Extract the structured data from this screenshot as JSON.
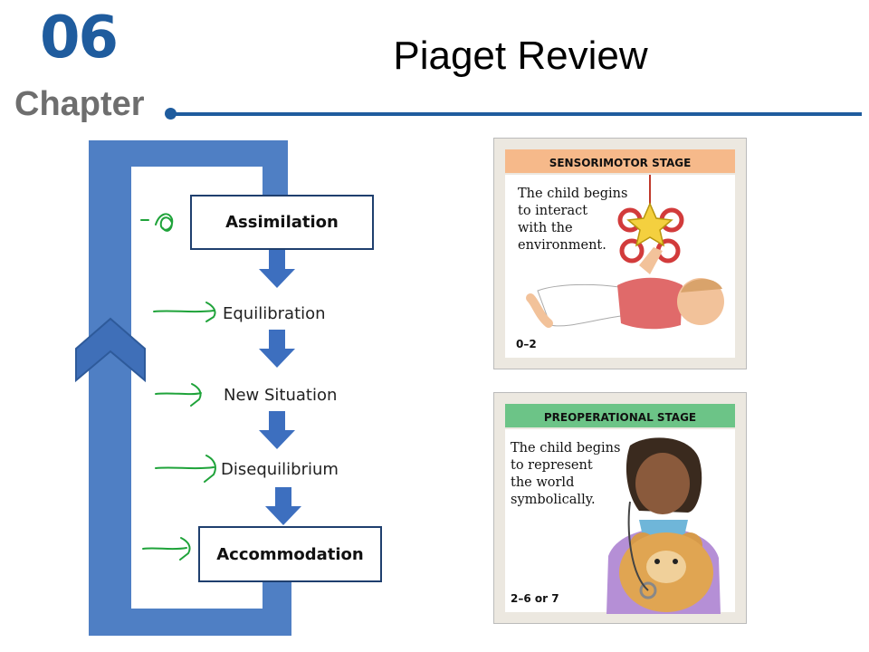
{
  "header": {
    "chapter_number": "06",
    "chapter_word": "Chapter",
    "title": "Piaget Review"
  },
  "cycle": {
    "steps": [
      "Assimilation",
      "Equilibration",
      "New Situation",
      "Disequilibrium",
      "Accommodation"
    ],
    "colors": {
      "loop": "#4f7fc4",
      "arrow": "#3d6fbf",
      "box_border": "#1f3f6e",
      "annotation": "#1fa33a"
    }
  },
  "cards": [
    {
      "stage": "SENSORIMOTOR STAGE",
      "text": [
        "The child begins",
        "to interact",
        "with the",
        "environment."
      ],
      "age": "0–2",
      "header_color": "#f6b98a"
    },
    {
      "stage": "PREOPERATIONAL STAGE",
      "text": [
        "The child begins",
        "to represent",
        "the world",
        "symbolically."
      ],
      "age": "2–6 or 7",
      "header_color": "#6cc487"
    }
  ]
}
